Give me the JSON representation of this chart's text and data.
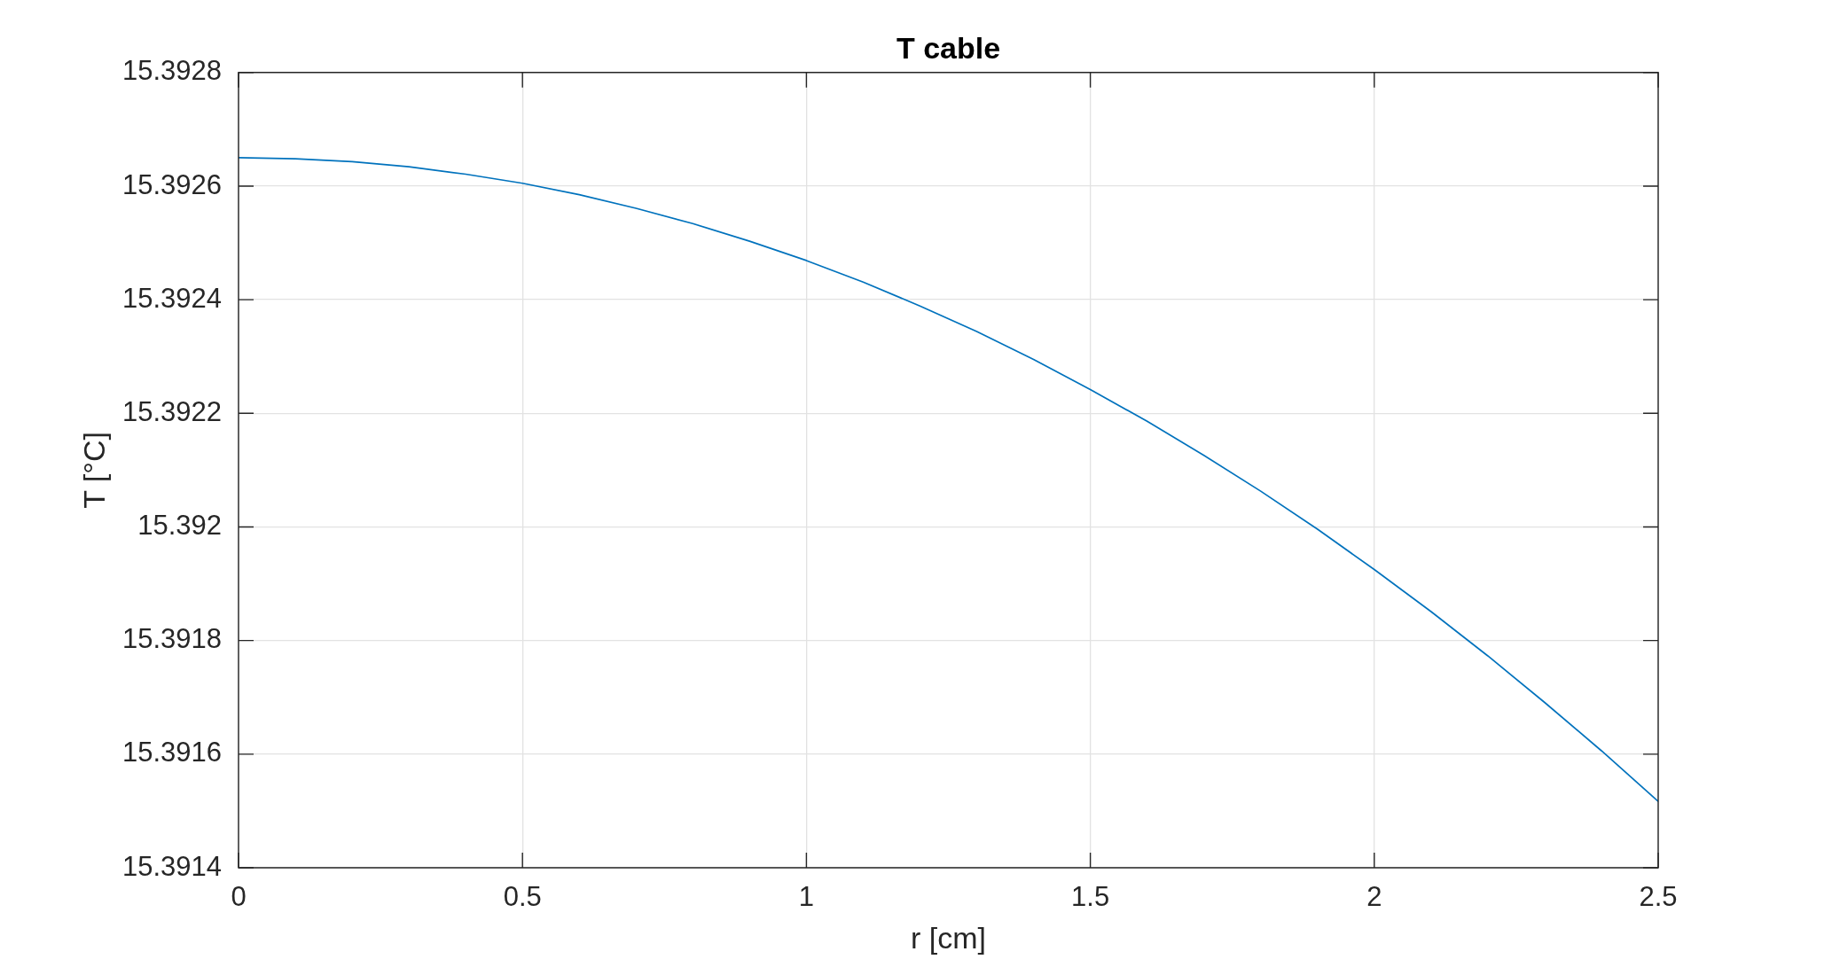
{
  "chart_data": {
    "type": "line",
    "title": "T cable",
    "xlabel": "r [cm]",
    "ylabel": "T [°C]",
    "x": [
      0,
      0.1,
      0.2,
      0.3,
      0.4,
      0.5,
      0.6,
      0.7,
      0.8,
      0.9,
      1,
      1.1,
      1.2,
      1.3,
      1.4,
      1.5,
      1.6,
      1.7,
      1.8,
      1.9,
      2,
      2.1,
      2.2,
      2.3,
      2.4,
      2.5
    ],
    "series": [
      {
        "color": "#0072bd",
        "values": [
          15.39265,
          15.392648,
          15.392643,
          15.392634,
          15.392621,
          15.392605,
          15.392585,
          15.392561,
          15.392534,
          15.392503,
          15.392469,
          15.392431,
          15.392389,
          15.392344,
          15.392295,
          15.392242,
          15.392186,
          15.392126,
          15.392063,
          15.391996,
          15.391925,
          15.391851,
          15.391773,
          15.391691,
          15.391606,
          15.391517
        ]
      }
    ],
    "xlim": [
      0,
      2.5
    ],
    "ylim": [
      15.3914,
      15.3928
    ],
    "xticks": [
      0,
      0.5,
      1,
      1.5,
      2,
      2.5
    ],
    "yticks": [
      15.3914,
      15.3916,
      15.3918,
      15.392,
      15.3922,
      15.3924,
      15.3926,
      15.3928
    ],
    "grid": true,
    "marker": "none",
    "line_style": "solid"
  }
}
